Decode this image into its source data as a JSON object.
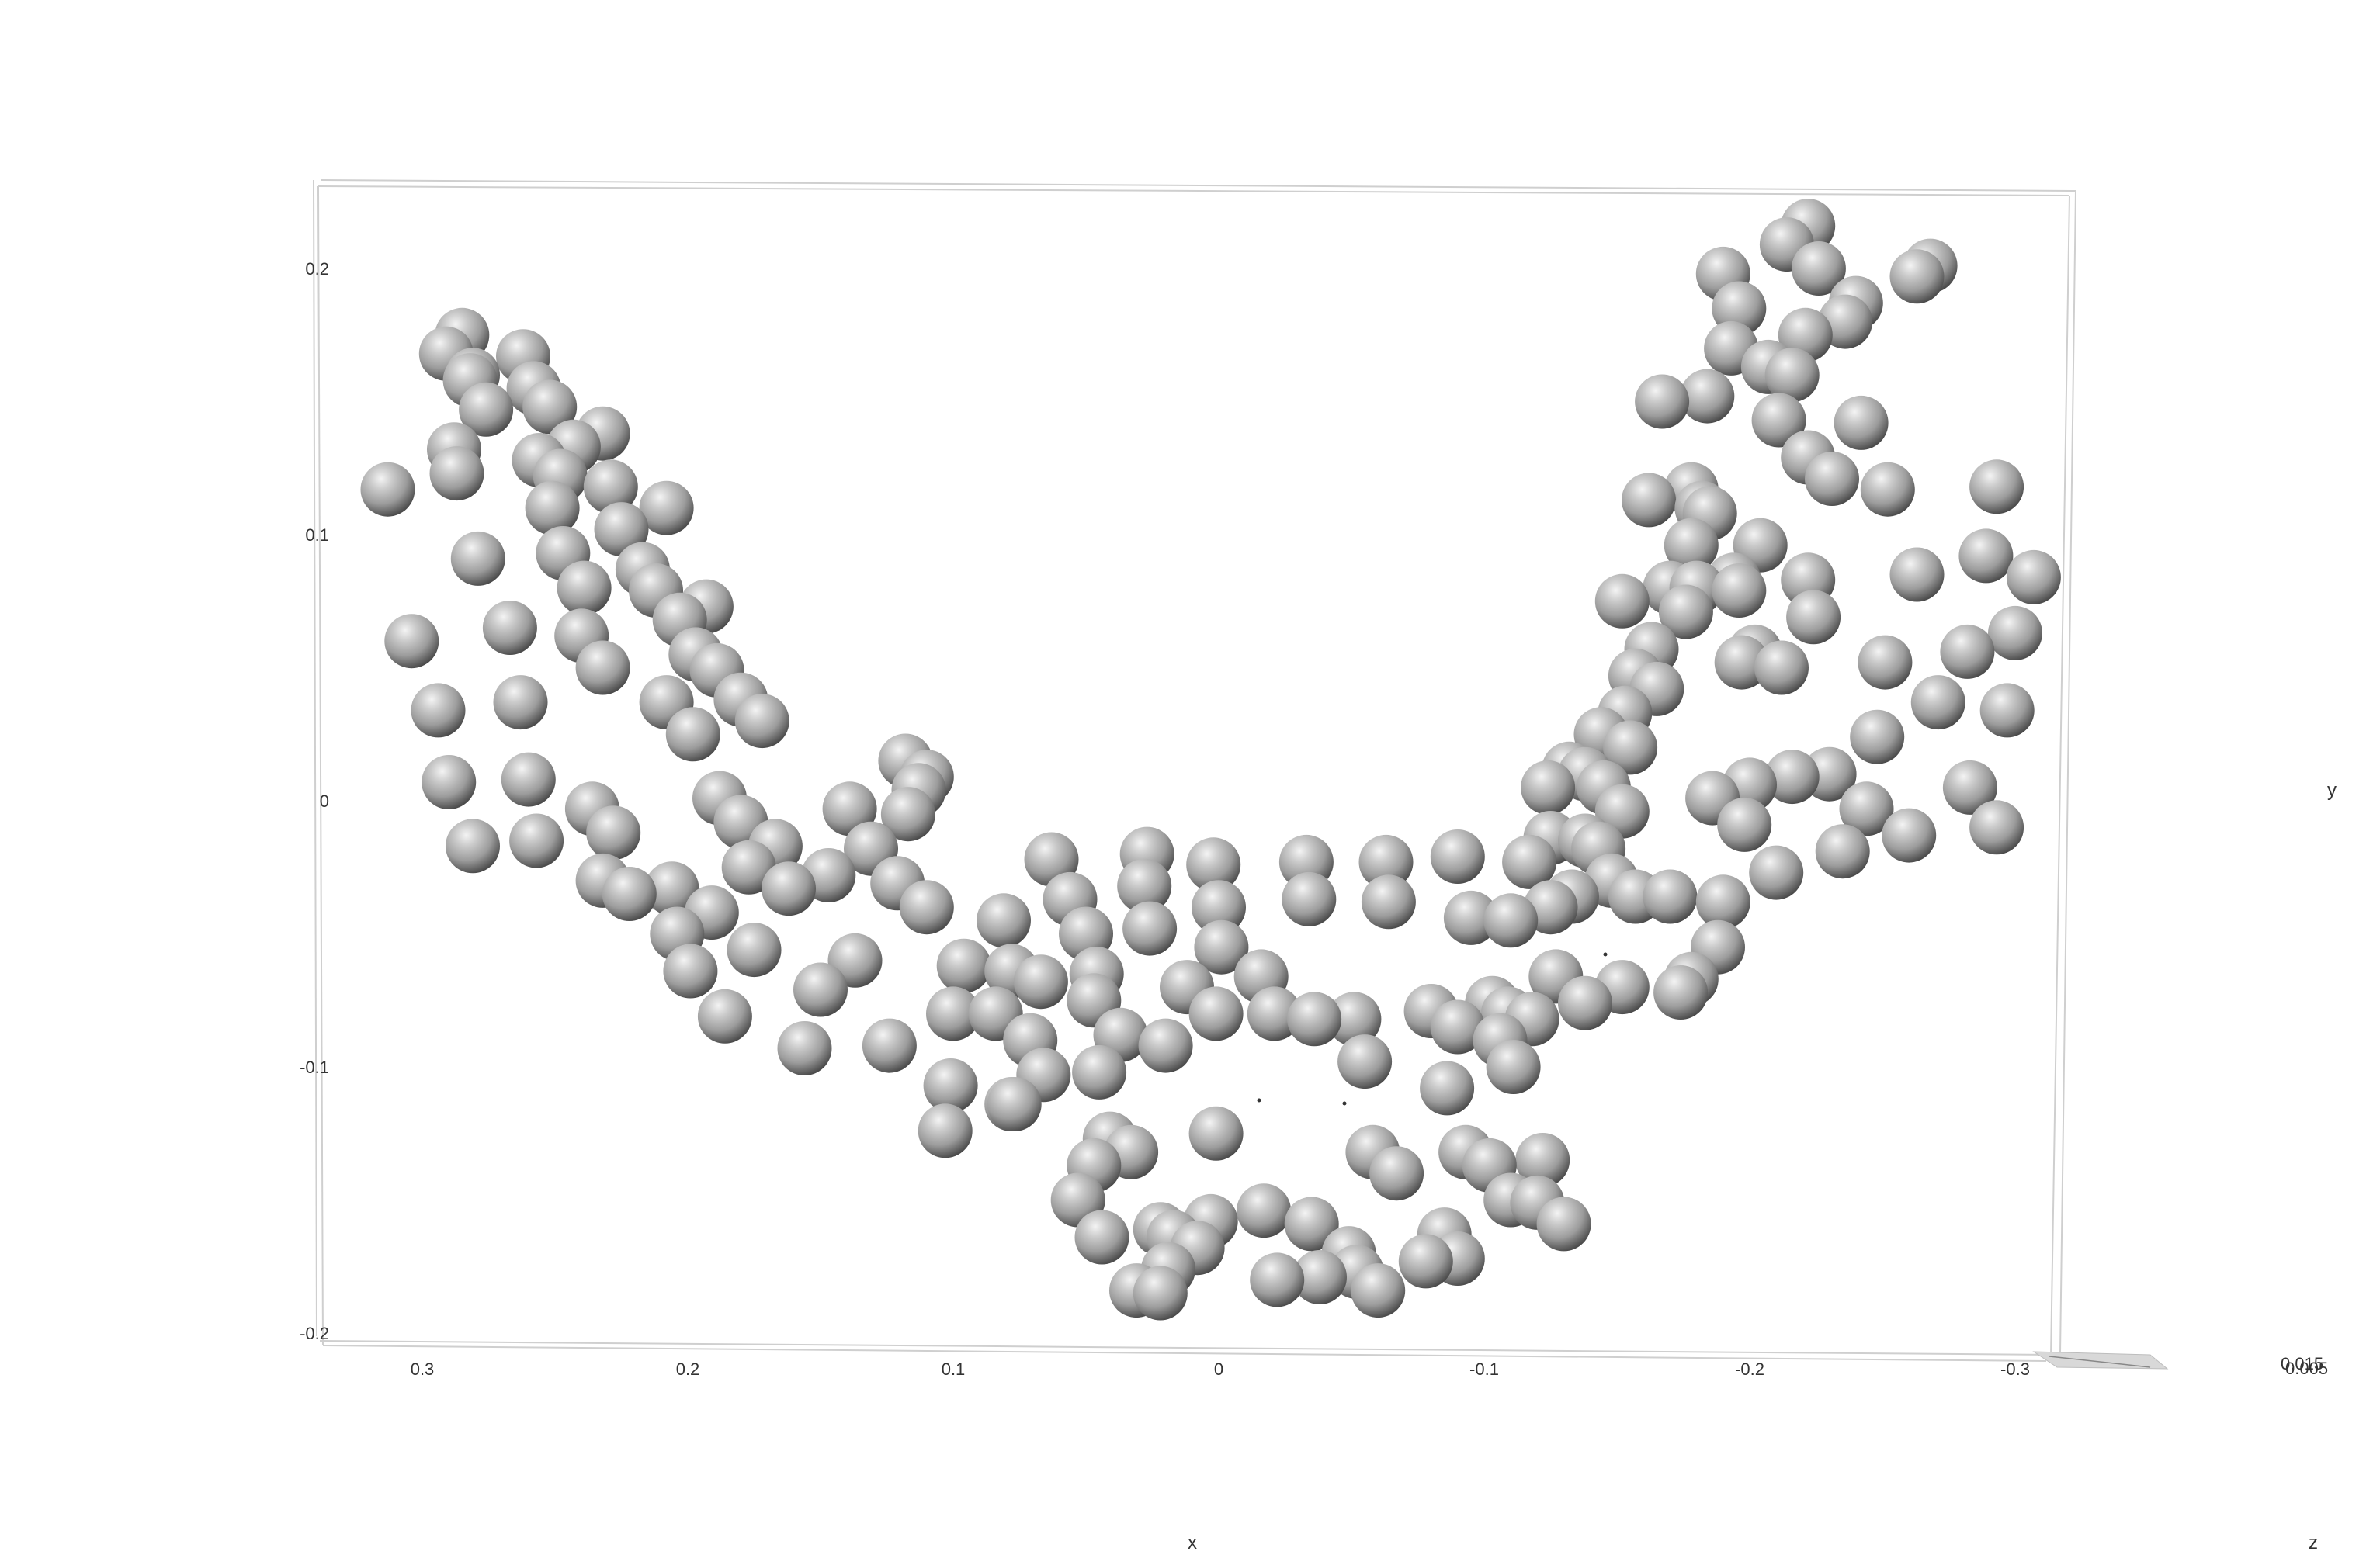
{
  "chart_data": {
    "type": "scatter",
    "title": "",
    "xlabel": "x",
    "ylabel": "y",
    "zlabel": "z",
    "xlim": [
      0.33,
      -0.32
    ],
    "ylim": [
      -0.205,
      0.225
    ],
    "x_axis_reversed": true,
    "x_ticks": [
      "0.3",
      "0.2",
      "0.1",
      "0",
      "-0.1",
      "-0.2",
      "-0.3"
    ],
    "y_ticks": [
      "0.2",
      "0.1",
      "0",
      "-0.1",
      "-0.2"
    ],
    "z_ticks": [
      "0.015",
      "0.005"
    ],
    "grid": false,
    "legend": "none",
    "marker": "sphere",
    "colors": {
      "marker": "#a0a0a0",
      "marker_highlight": "#f4f4f4",
      "marker_shadow": "#4a4a4a",
      "box": "#cfcfcf",
      "text": "#333333"
    },
    "points": [
      [
        0.313,
        0.117
      ],
      [
        0.304,
        0.06
      ],
      [
        0.294,
        0.034
      ],
      [
        0.29,
        0.007
      ],
      [
        0.281,
        -0.017
      ],
      [
        0.291,
        0.168
      ],
      [
        0.285,
        0.175
      ],
      [
        0.282,
        0.158
      ],
      [
        0.288,
        0.132
      ],
      [
        0.287,
        0.123
      ],
      [
        0.279,
        0.091
      ],
      [
        0.267,
        0.065
      ],
      [
        0.263,
        0.037
      ],
      [
        0.26,
        0.008
      ],
      [
        0.257,
        -0.015
      ],
      [
        0.276,
        0.147
      ],
      [
        0.281,
        0.16
      ],
      [
        0.262,
        0.167
      ],
      [
        0.258,
        0.155
      ],
      [
        0.252,
        0.148
      ],
      [
        0.256,
        0.128
      ],
      [
        0.248,
        0.122
      ],
      [
        0.251,
        0.11
      ],
      [
        0.247,
        0.093
      ],
      [
        0.239,
        0.08
      ],
      [
        0.24,
        0.062
      ],
      [
        0.232,
        0.05
      ],
      [
        0.243,
        0.133
      ],
      [
        0.232,
        0.138
      ],
      [
        0.229,
        0.118
      ],
      [
        0.225,
        0.102
      ],
      [
        0.217,
        0.087
      ],
      [
        0.208,
        0.11
      ],
      [
        0.212,
        0.079
      ],
      [
        0.203,
        0.068
      ],
      [
        0.193,
        0.073
      ],
      [
        0.197,
        0.055
      ],
      [
        0.189,
        0.049
      ],
      [
        0.208,
        0.037
      ],
      [
        0.198,
        0.025
      ],
      [
        0.18,
        0.038
      ],
      [
        0.172,
        0.03
      ],
      [
        0.188,
        0.001
      ],
      [
        0.18,
        -0.008
      ],
      [
        0.167,
        -0.017
      ],
      [
        0.177,
        -0.025
      ],
      [
        0.162,
        -0.033
      ],
      [
        0.147,
        -0.028
      ],
      [
        0.139,
        -0.003
      ],
      [
        0.131,
        -0.018
      ],
      [
        0.121,
        -0.031
      ],
      [
        0.11,
        -0.04
      ],
      [
        0.118,
        0.015
      ],
      [
        0.113,
        0.004
      ],
      [
        0.117,
        -0.005
      ],
      [
        0.11,
        0.009
      ],
      [
        0.236,
        -0.003
      ],
      [
        0.228,
        -0.012
      ],
      [
        0.232,
        -0.03
      ],
      [
        0.222,
        -0.035
      ],
      [
        0.204,
        -0.05
      ],
      [
        0.206,
        -0.033
      ],
      [
        0.191,
        -0.042
      ],
      [
        0.199,
        -0.064
      ],
      [
        0.175,
        -0.056
      ],
      [
        0.186,
        -0.081
      ],
      [
        0.156,
        -0.093
      ],
      [
        0.124,
        -0.092
      ],
      [
        0.15,
        -0.071
      ],
      [
        0.137,
        -0.06
      ],
      [
        0.1,
        -0.08
      ],
      [
        0.096,
        -0.062
      ],
      [
        0.084,
        -0.08
      ],
      [
        0.081,
        -0.045
      ],
      [
        0.078,
        -0.064
      ],
      [
        0.067,
        -0.068
      ],
      [
        0.056,
        -0.037
      ],
      [
        0.05,
        -0.05
      ],
      [
        0.063,
        -0.022
      ],
      [
        0.027,
        -0.02
      ],
      [
        0.028,
        -0.032
      ],
      [
        0.026,
        -0.048
      ],
      [
        0.002,
        -0.024
      ],
      [
        0.0,
        -0.04
      ],
      [
        -0.001,
        -0.055
      ],
      [
        -0.033,
        -0.023
      ],
      [
        -0.034,
        -0.037
      ],
      [
        -0.063,
        -0.023
      ],
      [
        -0.064,
        -0.038
      ],
      [
        -0.09,
        -0.021
      ],
      [
        -0.095,
        -0.044
      ],
      [
        -0.11,
        -0.045
      ],
      [
        -0.125,
        -0.04
      ],
      [
        -0.117,
        -0.023
      ],
      [
        -0.125,
        -0.014
      ],
      [
        -0.138,
        -0.015
      ],
      [
        -0.133,
        -0.036
      ],
      [
        -0.148,
        -0.03
      ],
      [
        -0.157,
        -0.036
      ],
      [
        -0.17,
        -0.036
      ],
      [
        -0.124,
        0.005
      ],
      [
        -0.138,
        0.01
      ],
      [
        -0.145,
        0.005
      ],
      [
        -0.152,
        -0.004
      ],
      [
        -0.143,
        -0.018
      ],
      [
        -0.144,
        0.025
      ],
      [
        -0.153,
        0.033
      ],
      [
        -0.155,
        0.02
      ],
      [
        -0.132,
        0.012
      ],
      [
        -0.157,
        0.047
      ],
      [
        -0.163,
        0.057
      ],
      [
        -0.165,
        0.042
      ],
      [
        -0.152,
        0.075
      ],
      [
        -0.17,
        0.08
      ],
      [
        -0.18,
        0.08
      ],
      [
        -0.176,
        0.071
      ],
      [
        -0.178,
        0.096
      ],
      [
        -0.182,
        0.11
      ],
      [
        -0.185,
        0.108
      ],
      [
        -0.194,
        0.083
      ],
      [
        -0.196,
        0.079
      ],
      [
        -0.202,
        0.056
      ],
      [
        -0.197,
        0.052
      ],
      [
        -0.212,
        0.05
      ],
      [
        -0.222,
        0.083
      ],
      [
        -0.204,
        0.096
      ],
      [
        -0.224,
        0.069
      ],
      [
        -0.162,
        0.113
      ],
      [
        -0.178,
        0.117
      ],
      [
        -0.167,
        0.15
      ],
      [
        -0.184,
        0.152
      ],
      [
        -0.193,
        0.17
      ],
      [
        -0.196,
        0.185
      ],
      [
        -0.19,
        0.198
      ],
      [
        -0.221,
        0.175
      ],
      [
        -0.216,
        0.16
      ],
      [
        -0.207,
        0.163
      ],
      [
        -0.211,
        0.143
      ],
      [
        -0.222,
        0.129
      ],
      [
        -0.231,
        0.121
      ],
      [
        -0.242,
        0.142
      ],
      [
        -0.24,
        0.187
      ],
      [
        -0.236,
        0.18
      ],
      [
        -0.214,
        0.209
      ],
      [
        -0.222,
        0.216
      ],
      [
        -0.226,
        0.2
      ],
      [
        -0.263,
        0.197
      ],
      [
        -0.268,
        0.201
      ],
      [
        -0.252,
        0.117
      ],
      [
        -0.263,
        0.085
      ],
      [
        -0.251,
        0.052
      ],
      [
        -0.248,
        0.024
      ],
      [
        -0.244,
        -0.003
      ],
      [
        -0.293,
        0.118
      ],
      [
        -0.289,
        0.092
      ],
      [
        -0.307,
        0.084
      ],
      [
        -0.3,
        0.063
      ],
      [
        -0.282,
        0.056
      ],
      [
        -0.297,
        0.034
      ],
      [
        -0.271,
        0.037
      ],
      [
        -0.283,
        0.005
      ],
      [
        -0.293,
        -0.01
      ],
      [
        -0.26,
        -0.013
      ],
      [
        -0.235,
        -0.019
      ],
      [
        -0.21,
        -0.027
      ],
      [
        -0.23,
        0.01
      ],
      [
        -0.216,
        0.009
      ],
      [
        -0.2,
        0.006
      ],
      [
        -0.186,
        0.001
      ],
      [
        -0.198,
        -0.009
      ],
      [
        -0.19,
        -0.038
      ],
      [
        -0.188,
        -0.055
      ],
      [
        -0.178,
        -0.067
      ],
      [
        -0.174,
        -0.072
      ],
      [
        -0.152,
        -0.07
      ],
      [
        -0.138,
        -0.076
      ],
      [
        -0.127,
        -0.066
      ],
      [
        -0.118,
        -0.082
      ],
      [
        -0.109,
        -0.08
      ],
      [
        -0.103,
        -0.076
      ],
      [
        -0.09,
        -0.085
      ],
      [
        -0.086,
        -0.108
      ],
      [
        -0.106,
        -0.09
      ],
      [
        -0.111,
        -0.1
      ],
      [
        -0.08,
        -0.079
      ],
      [
        -0.051,
        -0.082
      ],
      [
        -0.055,
        -0.098
      ],
      [
        -0.036,
        -0.082
      ],
      [
        -0.021,
        -0.08
      ],
      [
        -0.016,
        -0.066
      ],
      [
        0.012,
        -0.07
      ],
      [
        0.001,
        -0.08
      ],
      [
        0.02,
        -0.092
      ],
      [
        0.037,
        -0.088
      ],
      [
        0.045,
        -0.102
      ],
      [
        0.047,
        -0.075
      ],
      [
        0.046,
        -0.065
      ],
      [
        0.071,
        -0.09
      ],
      [
        0.078,
        -0.114
      ],
      [
        0.066,
        -0.103
      ],
      [
        0.101,
        -0.107
      ],
      [
        0.103,
        -0.124
      ],
      [
        0.077,
        -0.114
      ],
      [
        0.047,
        -0.137
      ],
      [
        0.033,
        -0.132
      ],
      [
        0.041,
        -0.127
      ],
      [
        0.053,
        -0.15
      ],
      [
        0.044,
        -0.164
      ],
      [
        0.022,
        -0.161
      ],
      [
        0.017,
        -0.164
      ],
      [
        0.001,
        -0.125
      ],
      [
        0.003,
        -0.158
      ],
      [
        -0.017,
        -0.154
      ],
      [
        -0.035,
        -0.159
      ],
      [
        -0.049,
        -0.17
      ],
      [
        -0.052,
        -0.177
      ],
      [
        -0.06,
        -0.184
      ],
      [
        -0.038,
        -0.179
      ],
      [
        -0.022,
        -0.18
      ],
      [
        0.008,
        -0.168
      ],
      [
        0.019,
        -0.176
      ],
      [
        0.022,
        -0.185
      ],
      [
        0.031,
        -0.184
      ],
      [
        -0.067,
        -0.14
      ],
      [
        -0.058,
        -0.132
      ],
      [
        -0.078,
        -0.173
      ],
      [
        -0.085,
        -0.163
      ],
      [
        -0.09,
        -0.172
      ],
      [
        -0.093,
        -0.132
      ],
      [
        -0.102,
        -0.137
      ],
      [
        -0.11,
        -0.15
      ],
      [
        -0.122,
        -0.135
      ],
      [
        -0.12,
        -0.151
      ],
      [
        -0.13,
        -0.159
      ]
    ]
  }
}
